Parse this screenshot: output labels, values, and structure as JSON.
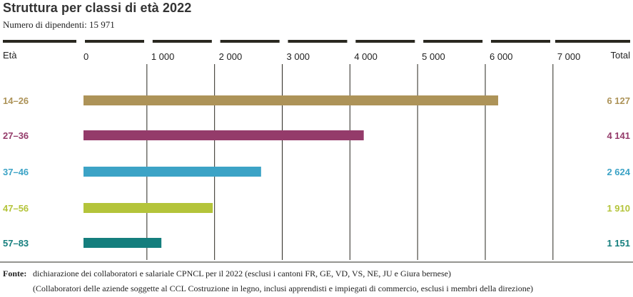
{
  "title": "Struttura per classi di età 2022",
  "subtitle": "Numero di dipendenti: 15 971",
  "column_headers": {
    "category": "Età",
    "total": "Total"
  },
  "chart_data": {
    "type": "bar",
    "orientation": "horizontal",
    "title": "Struttura per classi di età 2022",
    "subtitle": "Numero di dipendenti: 15 971",
    "xlim": [
      0,
      8000
    ],
    "xticks": [
      0,
      1000,
      2000,
      3000,
      4000,
      5000,
      6000,
      7000
    ],
    "tick_labels": [
      "0",
      "1 000",
      "2 000",
      "3 000",
      "4 000",
      "5 000",
      "6 000",
      "7 000"
    ],
    "grid": "vertical",
    "categories": [
      "14–26",
      "27–36",
      "37–46",
      "47–56",
      "57–83"
    ],
    "values": [
      6127,
      4141,
      2624,
      1910,
      1151
    ],
    "value_labels": [
      "6 127",
      "4 141",
      "2 624",
      "1 910",
      "1 151"
    ],
    "colors": [
      "#ad9358",
      "#943b6a",
      "#3ca3c6",
      "#b4c43a",
      "#147e7d"
    ]
  },
  "source": {
    "label": "Fonte:",
    "line1": "dichiarazione dei collaboratori e salariale CPNCL per il 2022 (esclusi i cantoni FR, GE, VD, VS, NE, JU e Giura bernese)",
    "line2": "(Collaboratori delle aziende soggette al CCL Costruzione in legno, inclusi apprendisti e impiegati di commercio, esclusi i membri della direzione)"
  }
}
